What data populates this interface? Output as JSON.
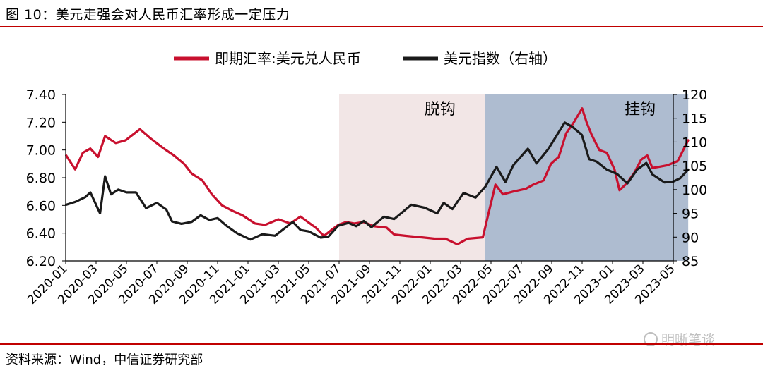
{
  "figure_title": "图 10：美元走强会对人民币汇率形成一定压力",
  "source_note": "资料来源：Wind，中信证券研究部",
  "watermark": "明晰笔谈",
  "chart_data": {
    "type": "line",
    "x_tick_labels": [
      "2020-01",
      "2020-03",
      "2020-05",
      "2020-07",
      "2020-09",
      "2020-11",
      "2021-01",
      "2021-03",
      "2021-05",
      "2021-07",
      "2021-09",
      "2021-11",
      "2022-01",
      "2022-03",
      "2022-05",
      "2022-07",
      "2022-09",
      "2022-11",
      "2023-01",
      "2023-03",
      "2023-05"
    ],
    "y_left_ticks": [
      "6.20",
      "6.40",
      "6.60",
      "6.80",
      "7.00",
      "7.20",
      "7.40"
    ],
    "y_left_range": [
      6.2,
      7.4
    ],
    "y_right_ticks": [
      "85",
      "90",
      "95",
      "100",
      "105",
      "110",
      "115",
      "120"
    ],
    "y_right_range": [
      85,
      120
    ],
    "x_range": [
      "2020-01",
      "2023-06"
    ],
    "grid": false,
    "legend_position": "top",
    "regions": [
      {
        "label": "脱钩",
        "start": "2021-07",
        "end": "2022-04-20",
        "color": "#f2e6e6"
      },
      {
        "label": "挂钩",
        "start": "2022-04-20",
        "end": "2023-05-31",
        "color": "#aebcd0"
      }
    ],
    "series": [
      {
        "name": "即期汇率:美元兑人民币",
        "axis": "left",
        "color": "#c8102e",
        "points": [
          [
            "2020-01-02",
            6.96
          ],
          [
            "2020-01-20",
            6.86
          ],
          [
            "2020-02-05",
            6.98
          ],
          [
            "2020-02-20",
            7.01
          ],
          [
            "2020-03-05",
            6.95
          ],
          [
            "2020-03-19",
            7.1
          ],
          [
            "2020-04-10",
            7.05
          ],
          [
            "2020-04-30",
            7.07
          ],
          [
            "2020-05-28",
            7.15
          ],
          [
            "2020-06-20",
            7.08
          ],
          [
            "2020-07-15",
            7.01
          ],
          [
            "2020-08-05",
            6.96
          ],
          [
            "2020-08-25",
            6.9
          ],
          [
            "2020-09-10",
            6.83
          ],
          [
            "2020-10-01",
            6.78
          ],
          [
            "2020-10-20",
            6.68
          ],
          [
            "2020-11-10",
            6.6
          ],
          [
            "2020-12-01",
            6.56
          ],
          [
            "2020-12-20",
            6.53
          ],
          [
            "2021-01-15",
            6.47
          ],
          [
            "2021-02-05",
            6.46
          ],
          [
            "2021-03-01",
            6.5
          ],
          [
            "2021-03-25",
            6.47
          ],
          [
            "2021-04-15",
            6.52
          ],
          [
            "2021-04-30",
            6.48
          ],
          [
            "2021-05-15",
            6.44
          ],
          [
            "2021-06-01",
            6.38
          ],
          [
            "2021-06-15",
            6.42
          ],
          [
            "2021-06-30",
            6.46
          ],
          [
            "2021-07-15",
            6.48
          ],
          [
            "2021-08-01",
            6.47
          ],
          [
            "2021-08-20",
            6.48
          ],
          [
            "2021-09-10",
            6.45
          ],
          [
            "2021-10-05",
            6.44
          ],
          [
            "2021-10-20",
            6.39
          ],
          [
            "2021-11-15",
            6.38
          ],
          [
            "2021-12-15",
            6.37
          ],
          [
            "2022-01-10",
            6.36
          ],
          [
            "2022-02-01",
            6.36
          ],
          [
            "2022-02-25",
            6.32
          ],
          [
            "2022-03-15",
            6.36
          ],
          [
            "2022-04-15",
            6.37
          ],
          [
            "2022-04-25",
            6.52
          ],
          [
            "2022-05-10",
            6.75
          ],
          [
            "2022-05-25",
            6.68
          ],
          [
            "2022-06-15",
            6.7
          ],
          [
            "2022-07-10",
            6.72
          ],
          [
            "2022-07-25",
            6.75
          ],
          [
            "2022-08-15",
            6.78
          ],
          [
            "2022-08-30",
            6.9
          ],
          [
            "2022-09-15",
            6.95
          ],
          [
            "2022-09-30",
            7.12
          ],
          [
            "2022-10-15",
            7.2
          ],
          [
            "2022-11-01",
            7.3
          ],
          [
            "2022-11-10",
            7.2
          ],
          [
            "2022-11-20",
            7.11
          ],
          [
            "2022-12-05",
            7.0
          ],
          [
            "2022-12-20",
            6.98
          ],
          [
            "2023-01-05",
            6.86
          ],
          [
            "2023-01-15",
            6.71
          ],
          [
            "2023-01-30",
            6.76
          ],
          [
            "2023-02-15",
            6.84
          ],
          [
            "2023-02-28",
            6.93
          ],
          [
            "2023-03-10",
            6.96
          ],
          [
            "2023-03-20",
            6.87
          ],
          [
            "2023-04-05",
            6.88
          ],
          [
            "2023-04-20",
            6.89
          ],
          [
            "2023-05-10",
            6.92
          ],
          [
            "2023-05-31",
            7.07
          ]
        ]
      },
      {
        "name": "美元指数（右轴）",
        "axis": "right",
        "color": "#1a1a1a",
        "points": [
          [
            "2020-01-02",
            96.8
          ],
          [
            "2020-01-20",
            97.4
          ],
          [
            "2020-02-10",
            98.4
          ],
          [
            "2020-02-20",
            99.4
          ],
          [
            "2020-03-09",
            95.0
          ],
          [
            "2020-03-19",
            102.8
          ],
          [
            "2020-03-31",
            99.0
          ],
          [
            "2020-04-15",
            100.0
          ],
          [
            "2020-05-01",
            99.4
          ],
          [
            "2020-05-20",
            99.4
          ],
          [
            "2020-06-10",
            96.1
          ],
          [
            "2020-07-01",
            97.2
          ],
          [
            "2020-07-20",
            95.8
          ],
          [
            "2020-08-01",
            93.3
          ],
          [
            "2020-08-20",
            92.8
          ],
          [
            "2020-09-10",
            93.2
          ],
          [
            "2020-09-28",
            94.6
          ],
          [
            "2020-10-15",
            93.6
          ],
          [
            "2020-11-01",
            94.0
          ],
          [
            "2020-11-20",
            92.3
          ],
          [
            "2020-12-10",
            90.8
          ],
          [
            "2021-01-06",
            89.5
          ],
          [
            "2021-01-30",
            90.6
          ],
          [
            "2021-02-25",
            90.3
          ],
          [
            "2021-03-30",
            93.2
          ],
          [
            "2021-04-15",
            91.5
          ],
          [
            "2021-05-01",
            91.2
          ],
          [
            "2021-05-25",
            89.9
          ],
          [
            "2021-06-10",
            90.1
          ],
          [
            "2021-06-30",
            92.4
          ],
          [
            "2021-07-20",
            93.0
          ],
          [
            "2021-08-05",
            92.3
          ],
          [
            "2021-08-20",
            93.4
          ],
          [
            "2021-09-05",
            92.1
          ],
          [
            "2021-09-30",
            94.3
          ],
          [
            "2021-10-20",
            93.8
          ],
          [
            "2021-11-24",
            96.8
          ],
          [
            "2021-12-20",
            96.2
          ],
          [
            "2022-01-15",
            95.0
          ],
          [
            "2022-01-28",
            97.2
          ],
          [
            "2022-02-15",
            95.9
          ],
          [
            "2022-03-07",
            99.3
          ],
          [
            "2022-03-31",
            98.3
          ],
          [
            "2022-04-20",
            100.6
          ],
          [
            "2022-05-12",
            104.8
          ],
          [
            "2022-05-30",
            101.6
          ],
          [
            "2022-06-15",
            105.1
          ],
          [
            "2022-07-14",
            108.6
          ],
          [
            "2022-08-01",
            105.5
          ],
          [
            "2022-08-25",
            108.6
          ],
          [
            "2022-09-27",
            114.1
          ],
          [
            "2022-10-12",
            113.2
          ],
          [
            "2022-10-31",
            111.5
          ],
          [
            "2022-11-15",
            106.4
          ],
          [
            "2022-11-30",
            105.9
          ],
          [
            "2022-12-20",
            104.2
          ],
          [
            "2023-01-10",
            103.3
          ],
          [
            "2023-01-31",
            101.3
          ],
          [
            "2023-02-20",
            104.2
          ],
          [
            "2023-03-08",
            105.6
          ],
          [
            "2023-03-20",
            103.2
          ],
          [
            "2023-04-14",
            101.5
          ],
          [
            "2023-05-01",
            101.7
          ],
          [
            "2023-05-15",
            102.4
          ],
          [
            "2023-05-31",
            104.2
          ]
        ]
      }
    ]
  }
}
